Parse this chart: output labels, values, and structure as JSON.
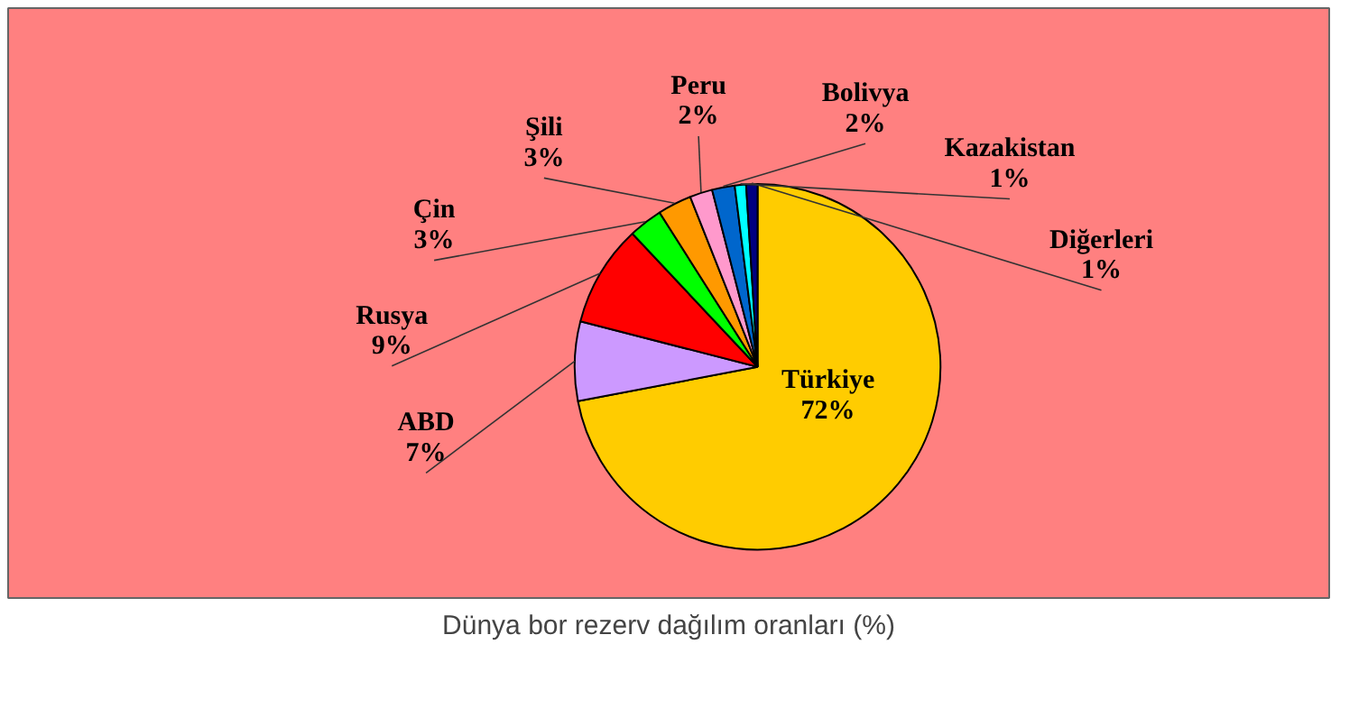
{
  "chart_data": {
    "type": "pie",
    "title": "Dünya bor rezerv dağılım oranları (%)",
    "categories": [
      "Türkiye",
      "ABD",
      "Rusya",
      "Çin",
      "Şili",
      "Peru",
      "Bolivya",
      "Kazakistan",
      "Diğerleri"
    ],
    "values": [
      72,
      7,
      9,
      3,
      3,
      2,
      2,
      1,
      1
    ],
    "value_labels": [
      "72%",
      "7%",
      "9%",
      "3%",
      "3%",
      "2%",
      "2%",
      "1%",
      "1%"
    ],
    "colors": [
      "#ffcc00",
      "#cc99ff",
      "#ff0000",
      "#00ff00",
      "#ff9900",
      "#ff99cc",
      "#0066cc",
      "#00ffff",
      "#000080"
    ]
  }
}
